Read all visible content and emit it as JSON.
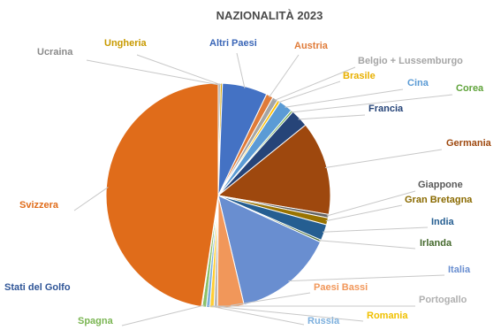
{
  "chart_data": {
    "type": "pie",
    "title": "NAZIONALITÀ 2023",
    "slices": [
      {
        "label": "Ucraina",
        "value": 0.3,
        "color": "#9a9a9a"
      },
      {
        "label": "Ungheria",
        "value": 0.3,
        "color": "#d8a300"
      },
      {
        "label": "Altri Paesi",
        "value": 6.5,
        "color": "#4472c4"
      },
      {
        "label": "Austria",
        "value": 1.0,
        "color": "#e07b39"
      },
      {
        "label": "Belgio + Lussemburgo",
        "value": 0.8,
        "color": "#a5a5a5"
      },
      {
        "label": "Brasile",
        "value": 0.4,
        "color": "#ffc000"
      },
      {
        "label": "Cina",
        "value": 2.0,
        "color": "#5b9bd5"
      },
      {
        "label": "Corea",
        "value": 0.3,
        "color": "#70ad47"
      },
      {
        "label": "Francia",
        "value": 2.6,
        "color": "#264478"
      },
      {
        "label": "Germania",
        "value": 13.5,
        "color": "#9e480e"
      },
      {
        "label": "Giappone",
        "value": 0.5,
        "color": "#636363"
      },
      {
        "label": "Gran Bretagna",
        "value": 1.0,
        "color": "#997300"
      },
      {
        "label": "India",
        "value": 2.3,
        "color": "#255e91"
      },
      {
        "label": "Irlanda",
        "value": 0.3,
        "color": "#43682b"
      },
      {
        "label": "Italia",
        "value": 14.5,
        "color": "#698ed0"
      },
      {
        "label": "Paesi Bassi",
        "value": 3.8,
        "color": "#f1975a"
      },
      {
        "label": "Portogallo",
        "value": 0.5,
        "color": "#b7b7b7"
      },
      {
        "label": "Romania",
        "value": 0.6,
        "color": "#ffcd33"
      },
      {
        "label": "Russia",
        "value": 0.5,
        "color": "#7cafdd"
      },
      {
        "label": "Spagna",
        "value": 0.6,
        "color": "#8cc168"
      },
      {
        "label": "Stati del Golfo",
        "value": 0.1,
        "color": "#2f5597"
      },
      {
        "label": "Svizzera",
        "value": 47.6,
        "color": "#e06c1a"
      }
    ],
    "legend": "none"
  }
}
